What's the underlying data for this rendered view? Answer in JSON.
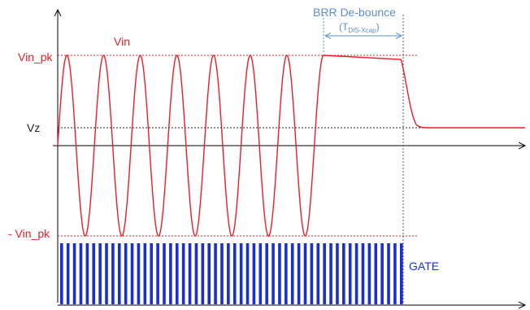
{
  "labels": {
    "vin_pk": "Vin_pk",
    "neg_vin_pk": "- Vin_pk",
    "vz": "Vz",
    "vin": "Vin",
    "brr": "BRR De-bounce",
    "tdis_prefix": "(T",
    "tdis_sub": "DIS-Xcap",
    "tdis_suffix": ")",
    "gate": "GATE"
  },
  "colors": {
    "signal": "#ee1c25",
    "axis": "#000000",
    "reference": "#222222",
    "annotation": "#5b8fc9",
    "gate": "#1a2fd0"
  },
  "waveform": {
    "cycles": 7,
    "gate_pulse_count": 54
  }
}
